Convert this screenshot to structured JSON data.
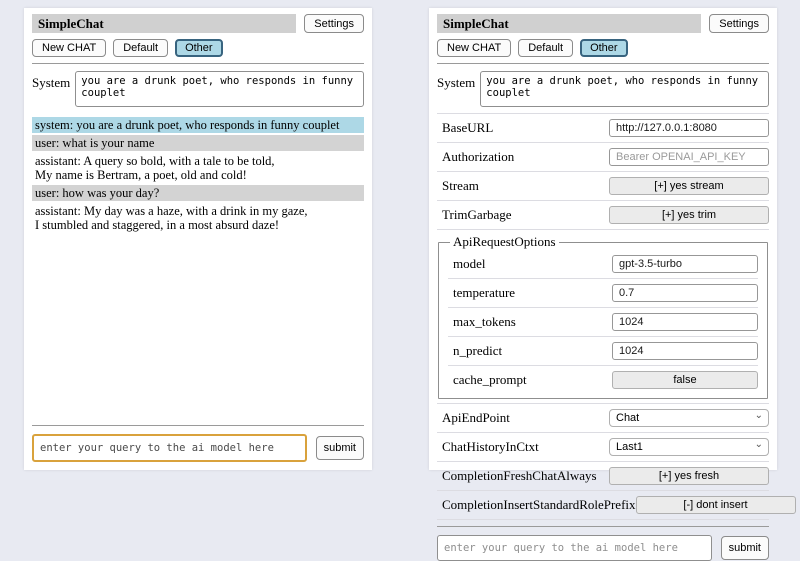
{
  "header": {
    "title": "SimpleChat",
    "settings_label": "Settings"
  },
  "toolbar": {
    "new_chat": "New CHAT",
    "default": "Default",
    "other": "Other"
  },
  "system": {
    "label": "System",
    "value": "you are a drunk poet, who responds in funny couplet"
  },
  "chat": {
    "messages": [
      {
        "role": "system",
        "lines": [
          "system: you are a drunk poet, who responds in funny couplet"
        ]
      },
      {
        "role": "user",
        "lines": [
          "user: what is your name"
        ]
      },
      {
        "role": "assistant",
        "lines": [
          "assistant: A query so bold, with a tale to be told,",
          "My name is Bertram, a poet, old and cold!"
        ]
      },
      {
        "role": "user",
        "lines": [
          "user: how was your day?"
        ]
      },
      {
        "role": "assistant",
        "lines": [
          "assistant: My day was a haze, with a drink in my gaze,",
          "I stumbled and staggered, in a most absurd daze!"
        ]
      }
    ]
  },
  "settings": {
    "base_url": {
      "label": "BaseURL",
      "value": "http://127.0.0.1:8080"
    },
    "authorization": {
      "label": "Authorization",
      "placeholder": "Bearer OPENAI_API_KEY"
    },
    "stream": {
      "label": "Stream",
      "button": "[+] yes stream"
    },
    "trim_garbage": {
      "label": "TrimGarbage",
      "button": "[+] yes trim"
    },
    "api_request_options": {
      "legend": "ApiRequestOptions",
      "model": {
        "label": "model",
        "value": "gpt-3.5-turbo"
      },
      "temperature": {
        "label": "temperature",
        "value": "0.7"
      },
      "max_tokens": {
        "label": "max_tokens",
        "value": "1024"
      },
      "n_predict": {
        "label": "n_predict",
        "value": "1024"
      },
      "cache_prompt": {
        "label": "cache_prompt",
        "button": "false"
      }
    },
    "api_endpoint": {
      "label": "ApiEndPoint",
      "value": "Chat"
    },
    "chat_history_in_ctxt": {
      "label": "ChatHistoryInCtxt",
      "value": "Last1"
    },
    "completion_fresh_chat_always": {
      "label": "CompletionFreshChatAlways",
      "button": "[+] yes fresh"
    },
    "completion_insert_standard_role_prefix": {
      "label": "CompletionInsertStandardRolePrefix",
      "button": "[-] dont insert"
    }
  },
  "query": {
    "placeholder": "enter your query to the ai model here",
    "submit_label": "submit"
  },
  "colors": {
    "accent_selected": "#add8e6",
    "role_system_bg": "#add8e6",
    "role_user_bg": "#d3d3d3",
    "focus_border": "#d9a23c"
  }
}
